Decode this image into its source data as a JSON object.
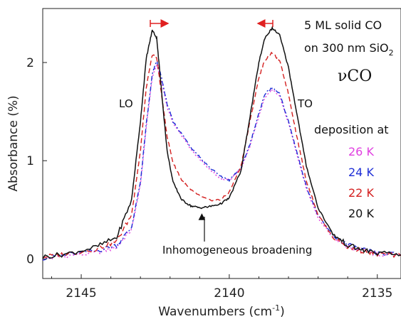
{
  "chart_data": {
    "type": "line",
    "xlabel": "Wavenumbers (cm",
    "xlabel_sup": "-1",
    "xlabel_end": ")",
    "ylabel": "Absorbance (%)",
    "xlim": [
      2146.3,
      2134.2
    ],
    "ylim": [
      -0.2,
      2.55
    ],
    "x_reversed": true,
    "x_ticks": [
      2145,
      2140,
      2135
    ],
    "x_tick_labels": [
      "2145",
      "2140",
      "2135"
    ],
    "y_ticks": [
      0,
      1,
      2
    ],
    "y_tick_labels": [
      "0",
      "1",
      "2"
    ],
    "grid": false,
    "legend_title": "deposition at",
    "legend_placement": "right",
    "series": [
      {
        "name": "26 K",
        "color": "#e040e0",
        "dash": "dot",
        "x": [
          2146.3,
          2145.5,
          2144.5,
          2143.8,
          2143.3,
          2143.0,
          2142.8,
          2142.6,
          2142.45,
          2142.3,
          2142.1,
          2141.9,
          2141.6,
          2141.3,
          2141.0,
          2140.7,
          2140.3,
          2140.0,
          2139.6,
          2139.3,
          2139.0,
          2138.8,
          2138.55,
          2138.3,
          2138.0,
          2137.7,
          2137.4,
          2137.0,
          2136.5,
          2136.0,
          2135.5,
          2135.0,
          2134.2
        ],
        "y": [
          0.0,
          0.03,
          0.06,
          0.12,
          0.3,
          0.75,
          1.35,
          1.85,
          1.98,
          1.82,
          1.55,
          1.38,
          1.25,
          1.12,
          1.02,
          0.92,
          0.82,
          0.8,
          0.92,
          1.15,
          1.45,
          1.65,
          1.72,
          1.66,
          1.38,
          1.05,
          0.72,
          0.42,
          0.22,
          0.12,
          0.08,
          0.05,
          0.03
        ]
      },
      {
        "name": "24 K",
        "color": "#1f2fd6",
        "dash": "dashdot",
        "x": [
          2146.3,
          2145.5,
          2144.5,
          2143.8,
          2143.3,
          2143.0,
          2142.8,
          2142.6,
          2142.45,
          2142.3,
          2142.1,
          2141.9,
          2141.6,
          2141.3,
          2141.0,
          2140.7,
          2140.3,
          2140.0,
          2139.6,
          2139.3,
          2139.0,
          2138.8,
          2138.55,
          2138.3,
          2138.0,
          2137.7,
          2137.4,
          2137.0,
          2136.5,
          2136.0,
          2135.5,
          2135.0,
          2134.2
        ],
        "y": [
          0.01,
          0.04,
          0.08,
          0.14,
          0.32,
          0.78,
          1.38,
          1.88,
          2.02,
          1.86,
          1.58,
          1.4,
          1.27,
          1.14,
          1.04,
          0.94,
          0.84,
          0.8,
          0.93,
          1.17,
          1.48,
          1.68,
          1.74,
          1.68,
          1.4,
          1.07,
          0.74,
          0.44,
          0.24,
          0.14,
          0.09,
          0.06,
          0.04
        ]
      },
      {
        "name": "22 K",
        "color": "#d42020",
        "dash": "dash",
        "x": [
          2146.3,
          2145.5,
          2144.5,
          2143.8,
          2143.3,
          2143.0,
          2142.8,
          2142.6,
          2142.45,
          2142.3,
          2142.1,
          2141.9,
          2141.6,
          2141.3,
          2141.0,
          2140.7,
          2140.3,
          2140.0,
          2139.6,
          2139.3,
          2139.0,
          2138.8,
          2138.55,
          2138.3,
          2138.0,
          2137.7,
          2137.4,
          2137.0,
          2136.5,
          2136.0,
          2135.5,
          2135.0,
          2134.2
        ],
        "y": [
          0.02,
          0.05,
          0.1,
          0.18,
          0.45,
          1.1,
          1.75,
          2.08,
          2.05,
          1.7,
          1.25,
          0.98,
          0.8,
          0.7,
          0.64,
          0.6,
          0.6,
          0.68,
          0.95,
          1.4,
          1.85,
          2.02,
          2.1,
          2.02,
          1.68,
          1.22,
          0.8,
          0.45,
          0.22,
          0.12,
          0.08,
          0.05,
          0.03
        ]
      },
      {
        "name": "20 K",
        "color": "#111111",
        "dash": "solid",
        "x": [
          2146.3,
          2145.5,
          2144.5,
          2143.8,
          2143.3,
          2143.0,
          2142.8,
          2142.6,
          2142.45,
          2142.3,
          2142.1,
          2141.9,
          2141.6,
          2141.3,
          2141.0,
          2140.7,
          2140.3,
          2140.0,
          2139.6,
          2139.3,
          2139.0,
          2138.8,
          2138.55,
          2138.3,
          2138.0,
          2137.7,
          2137.4,
          2137.0,
          2136.5,
          2136.0,
          2135.5,
          2135.0,
          2134.2
        ],
        "y": [
          0.02,
          0.05,
          0.12,
          0.22,
          0.6,
          1.4,
          2.05,
          2.33,
          2.25,
          1.75,
          1.1,
          0.78,
          0.6,
          0.54,
          0.52,
          0.53,
          0.56,
          0.62,
          0.9,
          1.45,
          2.0,
          2.25,
          2.35,
          2.28,
          1.95,
          1.45,
          0.95,
          0.52,
          0.25,
          0.14,
          0.09,
          0.06,
          0.04
        ]
      }
    ]
  },
  "annotations": {
    "sample_line1": "5 ML solid CO",
    "sample_line2": "on 300 nm SiO",
    "sample_line2_sub": "2",
    "mode": "νCO",
    "lo_label": "LO",
    "to_label": "TO",
    "broadening": "Inhomogeneous broadening"
  },
  "colors": {
    "axis": "#222222",
    "arrow_red": "#e02020"
  }
}
